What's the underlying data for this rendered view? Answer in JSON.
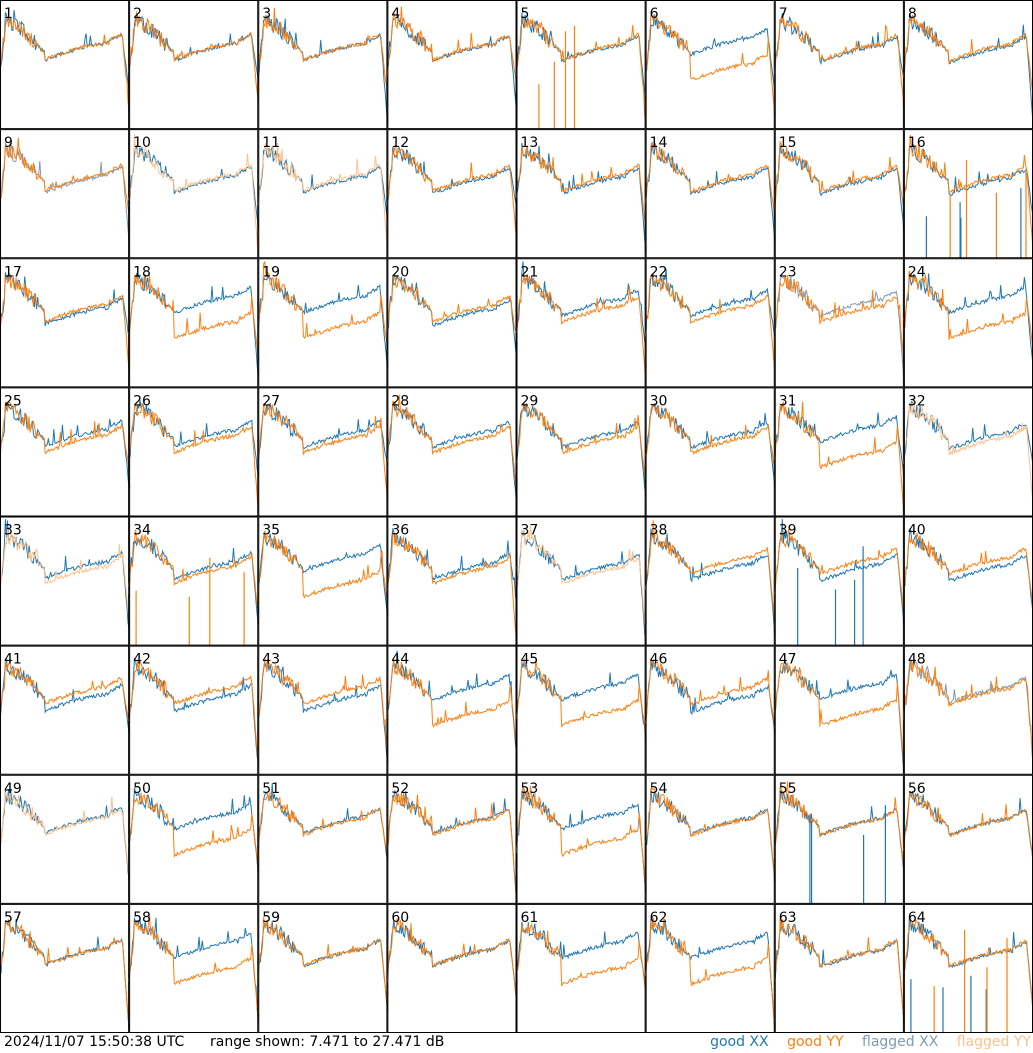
{
  "chart_data": {
    "type": "line",
    "grid": "8x8 small multiples",
    "panel_labels": [
      "1",
      "2",
      "3",
      "4",
      "5",
      "6",
      "7",
      "8",
      "9",
      "10",
      "11",
      "12",
      "13",
      "14",
      "15",
      "16",
      "17",
      "18",
      "19",
      "20",
      "21",
      "22",
      "23",
      "24",
      "25",
      "26",
      "27",
      "28",
      "29",
      "30",
      "31",
      "32",
      "33",
      "34",
      "35",
      "36",
      "37",
      "38",
      "39",
      "40",
      "41",
      "42",
      "43",
      "44",
      "45",
      "46",
      "47",
      "48",
      "49",
      "50",
      "51",
      "52",
      "53",
      "54",
      "55",
      "56",
      "57",
      "58",
      "59",
      "60",
      "61",
      "62",
      "63",
      "64"
    ],
    "ylim_db": [
      7.471,
      27.471
    ],
    "timestamp": "2024/11/07 15:50:38 UTC",
    "range_text": "range shown: 7.471 to 27.471 dB",
    "legend": [
      {
        "key": "good_xx",
        "label": "good XX",
        "color": "#1f77b4"
      },
      {
        "key": "good_yy",
        "label": "good YY",
        "color": "#ff7f0e"
      },
      {
        "key": "flagged_xx",
        "label": "flagged XX",
        "color": "#7f9ab4"
      },
      {
        "key": "flagged_yy",
        "label": "flagged YY",
        "color": "#ffc08a"
      }
    ],
    "panels_with_flagged_xx": [
      9,
      23,
      48
    ],
    "panels_with_flagged_yy": [
      10,
      11,
      32,
      33,
      37,
      49
    ],
    "panels_with_spike_xx": [
      16,
      39,
      55,
      64
    ],
    "panels_with_spike_yy": [
      5,
      16,
      34,
      64
    ],
    "panels_with_large_xx_yy_gap": [
      6,
      18,
      19,
      24,
      31,
      35,
      44,
      45,
      47,
      50,
      53,
      58,
      61,
      62
    ]
  },
  "footer": {
    "timestamp": "2024/11/07 15:50:38 UTC",
    "range": "range shown: 7.471 to 27.471 dB",
    "legend_good_xx": "good XX",
    "legend_good_yy": "good YY",
    "legend_flagged_xx": "flagged XX",
    "legend_flagged_yy": "flagged YY"
  }
}
